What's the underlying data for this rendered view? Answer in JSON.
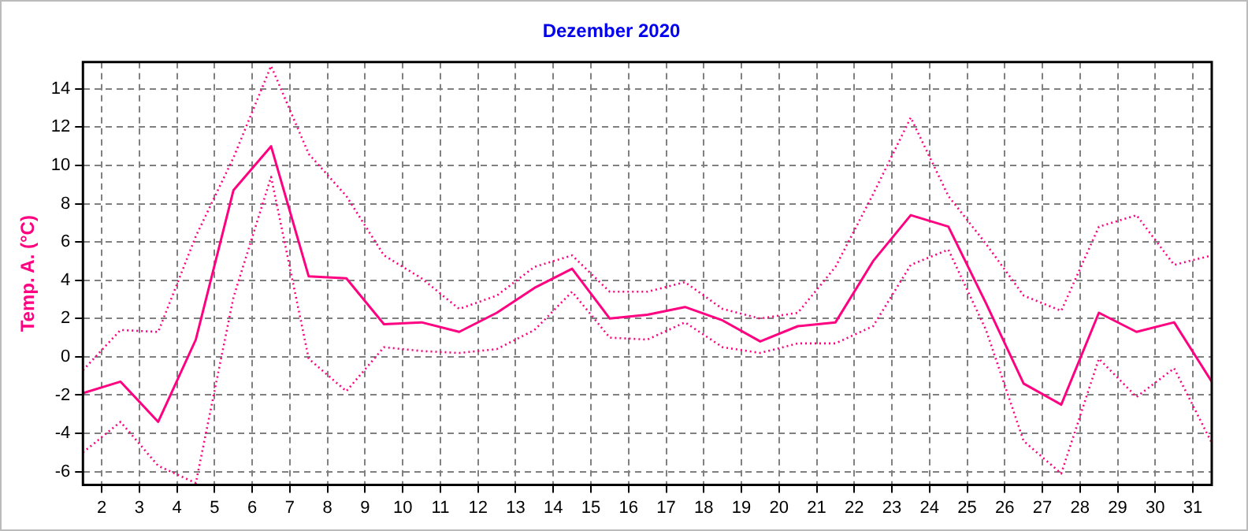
{
  "chart_data": {
    "type": "line",
    "title": "Dezember 2020",
    "ylabel": "Temp. A. (°C)",
    "x": [
      1.5,
      2.5,
      3.5,
      4.5,
      5.5,
      6.5,
      7.5,
      8.5,
      9.5,
      10.5,
      11.5,
      12.5,
      13.5,
      14.5,
      15.5,
      16.5,
      17.5,
      18.5,
      19.5,
      20.5,
      21.5,
      22.5,
      23.5,
      24.5,
      25.5,
      26.5,
      27.5,
      28.5,
      29.5,
      30.5,
      31.5
    ],
    "xlim": [
      1.5,
      31.5
    ],
    "xticks": [
      2,
      3,
      4,
      5,
      6,
      7,
      8,
      9,
      10,
      11,
      12,
      13,
      14,
      15,
      16,
      17,
      18,
      19,
      20,
      21,
      22,
      23,
      24,
      25,
      26,
      27,
      28,
      29,
      30,
      31
    ],
    "ylim": [
      -6.7,
      15.4
    ],
    "yticks": [
      -6,
      -4,
      -2,
      0,
      2,
      4,
      6,
      8,
      10,
      12,
      14
    ],
    "grid": true,
    "legend": false,
    "marker": "none",
    "series": [
      {
        "color": "#ff0080",
        "line_style": "solid",
        "values": [
          -1.9,
          -1.3,
          -3.4,
          0.9,
          8.7,
          11.0,
          4.2,
          4.1,
          1.7,
          1.8,
          1.3,
          2.3,
          3.6,
          4.6,
          2.0,
          2.2,
          2.6,
          1.9,
          0.8,
          1.6,
          1.8,
          5.0,
          7.4,
          6.8,
          2.8,
          -1.4,
          -2.5,
          2.3,
          1.3,
          1.8,
          -1.3
        ]
      },
      {
        "color": "#ff0080",
        "line_style": "dotted",
        "values": [
          -0.7,
          1.4,
          1.3,
          6.3,
          10.4,
          15.2,
          10.6,
          8.4,
          5.3,
          4.1,
          2.5,
          3.2,
          4.7,
          5.3,
          3.4,
          3.4,
          3.9,
          2.5,
          2.0,
          2.3,
          4.7,
          8.5,
          12.5,
          8.4,
          5.9,
          3.2,
          2.4,
          6.8,
          7.4,
          4.8,
          5.3
        ]
      },
      {
        "color": "#ff0080",
        "line_style": "dotted",
        "values": [
          -5.0,
          -3.4,
          -5.7,
          -6.6,
          3.1,
          9.4,
          -0.1,
          -1.8,
          0.5,
          0.3,
          0.2,
          0.4,
          1.4,
          3.4,
          1.0,
          0.9,
          1.8,
          0.5,
          0.2,
          0.7,
          0.7,
          1.6,
          4.8,
          5.6,
          1.4,
          -4.4,
          -6.1,
          -0.1,
          -2.1,
          -0.6,
          -4.5
        ]
      }
    ]
  }
}
